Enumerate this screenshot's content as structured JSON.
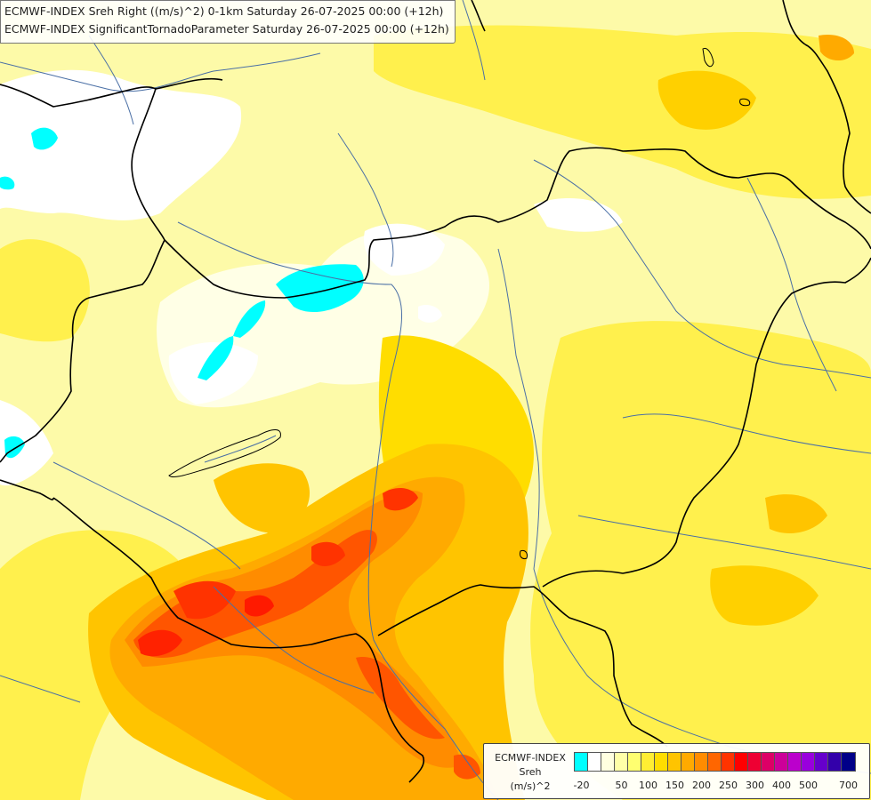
{
  "titles": [
    "ECMWF-INDEX Sreh Right ((m/s)^2) 0-1km Saturday 26-07-2025 00:00 (+12h)",
    "ECMWF-INDEX SignificantTornadoParameter Saturday 26-07-2025 00:00 (+12h)"
  ],
  "legend": {
    "model": "ECMWF-INDEX",
    "parameter": "Sreh",
    "unit": "(m/s)^2",
    "tick_labels": [
      "-20",
      "50",
      "100",
      "150",
      "200",
      "250",
      "300",
      "400",
      "500",
      "700"
    ],
    "tick_values": [
      -20,
      50,
      100,
      150,
      200,
      250,
      300,
      400,
      500,
      700
    ],
    "color_bins": [
      {
        "value": -20,
        "color": "#00ffff"
      },
      {
        "value": 0,
        "color": "#ffffff"
      },
      {
        "value": 25,
        "color": "#ffffe0"
      },
      {
        "value": 50,
        "color": "#ffffa8"
      },
      {
        "value": 75,
        "color": "#ffff70"
      },
      {
        "value": 100,
        "color": "#ffee33"
      },
      {
        "value": 125,
        "color": "#ffdd00"
      },
      {
        "value": 150,
        "color": "#ffc400"
      },
      {
        "value": 175,
        "color": "#ffaa00"
      },
      {
        "value": 200,
        "color": "#ff8c00"
      },
      {
        "value": 225,
        "color": "#ff6600"
      },
      {
        "value": 250,
        "color": "#ff3300"
      },
      {
        "value": 275,
        "color": "#ff0000"
      },
      {
        "value": 300,
        "color": "#ee0033"
      },
      {
        "value": 350,
        "color": "#dd0066"
      },
      {
        "value": 400,
        "color": "#cc0099"
      },
      {
        "value": 450,
        "color": "#bb00cc"
      },
      {
        "value": 500,
        "color": "#9900dd"
      },
      {
        "value": 600,
        "color": "#6600cc"
      },
      {
        "value": 650,
        "color": "#3300aa"
      },
      {
        "value": 700,
        "color": "#000088"
      }
    ]
  },
  "map": {
    "region": "Hungary and surroundings",
    "background_color": "#fdfaa8",
    "border_color": "#000000",
    "river_color": "#4a6fa5"
  }
}
